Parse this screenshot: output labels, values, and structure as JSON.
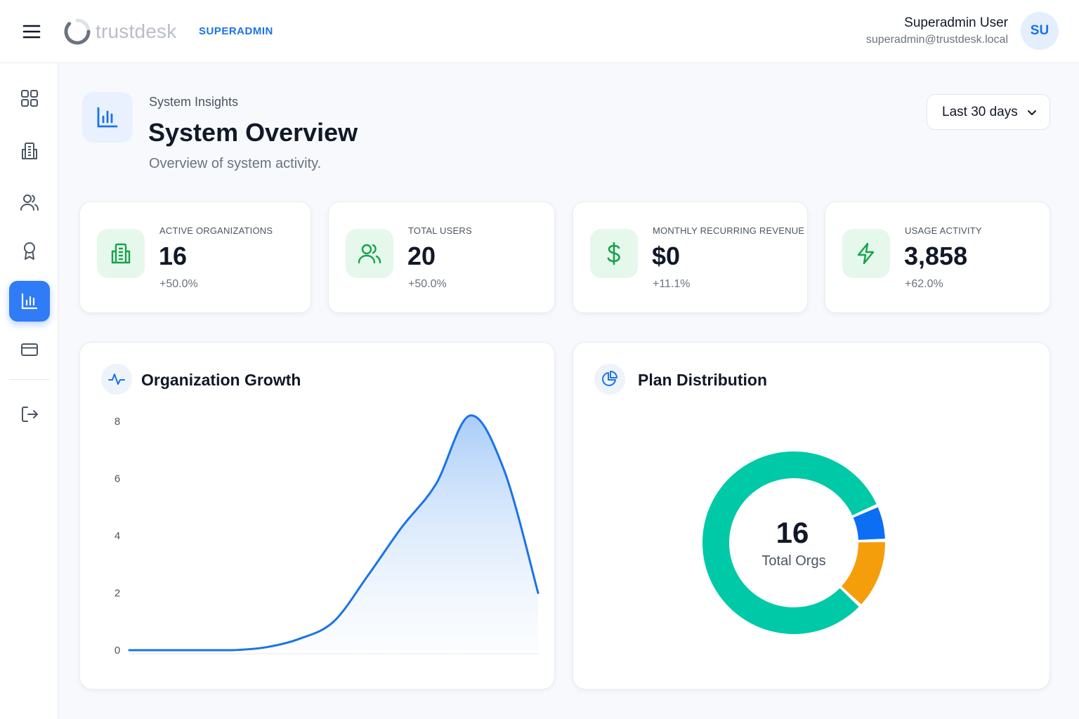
{
  "header": {
    "brand": "trustdesk",
    "role": "SUPERADMIN",
    "user_name": "Superadmin User",
    "user_email": "superadmin@trustdesk.local",
    "avatar_initials": "SU",
    "menu_icon": "hamburger-menu-icon"
  },
  "sidebar": {
    "items": [
      {
        "name": "dashboard",
        "icon": "grid-icon",
        "active": false
      },
      {
        "name": "organizations",
        "icon": "building-icon",
        "active": false
      },
      {
        "name": "users",
        "icon": "users-icon",
        "active": false
      },
      {
        "name": "plans",
        "icon": "award-icon",
        "active": false
      },
      {
        "name": "insights",
        "icon": "bar-chart-icon",
        "active": true
      },
      {
        "name": "billing",
        "icon": "credit-card-icon",
        "active": false
      }
    ],
    "logout_icon": "logout-icon"
  },
  "page": {
    "eyebrow": "System Insights",
    "title": "System Overview",
    "subtitle": "Overview of system activity.",
    "range_selected": "Last 30 days"
  },
  "stats": [
    {
      "label": "ACTIVE ORGANIZATIONS",
      "value": "16",
      "change": "+50.0%",
      "icon": "building-icon"
    },
    {
      "label": "TOTAL USERS",
      "value": "20",
      "change": "+50.0%",
      "icon": "users-icon"
    },
    {
      "label": "MONTHLY RECURRING REVENUE",
      "value": "$0",
      "change": "+11.1%",
      "icon": "dollar-icon"
    },
    {
      "label": "USAGE ACTIVITY",
      "value": "3,858",
      "change": "+62.0%",
      "icon": "lightning-icon"
    }
  ],
  "growth": {
    "title": "Organization Growth",
    "icon": "activity-icon"
  },
  "distribution": {
    "title": "Plan Distribution",
    "icon": "pie-chart-icon",
    "center_value": "16",
    "center_label": "Total Orgs"
  },
  "colors": {
    "accent": "#2f7cf6",
    "line": "#1a73e8",
    "success": "#16a34a",
    "success_bg": "#e6f7ec",
    "plan_teal": "#00c9a7",
    "plan_blue": "#0b6ef3",
    "plan_orange": "#f59e0b"
  },
  "chart_data": [
    {
      "type": "area",
      "title": "Organization Growth",
      "xlabel": "",
      "ylabel": "",
      "x": [
        0,
        1,
        2,
        3,
        4,
        5,
        6,
        7,
        8,
        9,
        10,
        11,
        12
      ],
      "series": [
        {
          "values": [
            0,
            0,
            0,
            0,
            0.1,
            0.4,
            1.0,
            2.6,
            4.3,
            5.8,
            8.2,
            6.3,
            2.0
          ]
        }
      ],
      "yticks": [
        0,
        2,
        4,
        6,
        8
      ],
      "ylim": [
        0,
        8.5
      ],
      "grid": false,
      "legend": "none"
    },
    {
      "type": "pie",
      "title": "Plan Distribution",
      "donut": true,
      "values": [
        13,
        1,
        2
      ],
      "colors": [
        "#00c9a7",
        "#0b6ef3",
        "#f59e0b"
      ],
      "legend": "none"
    }
  ]
}
